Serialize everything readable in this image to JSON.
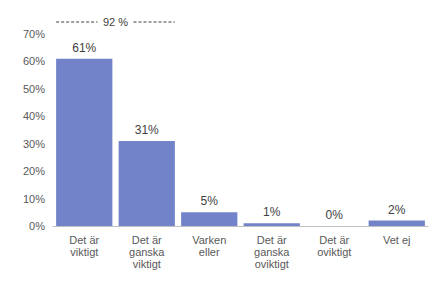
{
  "chart_data": {
    "type": "bar",
    "annotation": "92 %",
    "categories": [
      "Det är\nviktigt",
      "Det är\nganska\nviktigt",
      "Varken\neller",
      "Det är\nganska\noviktigt",
      "Det är\noviktigt",
      "Vet ej"
    ],
    "values": [
      61,
      31,
      5,
      1,
      0,
      2
    ],
    "value_labels": [
      "61%",
      "31%",
      "5%",
      "1%",
      "0%",
      "2%"
    ],
    "data_labels": true,
    "color": "#7383c9",
    "ylim": [
      0,
      70
    ],
    "yticks": [
      {
        "value": 0,
        "label": "0%"
      },
      {
        "value": 10,
        "label": "10%"
      },
      {
        "value": 20,
        "label": "20%"
      },
      {
        "value": 30,
        "label": "30%"
      },
      {
        "value": 40,
        "label": "40%"
      },
      {
        "value": 50,
        "label": "50%"
      },
      {
        "value": 60,
        "label": "60%"
      },
      {
        "value": 70,
        "label": "70%"
      }
    ],
    "grid": false
  }
}
